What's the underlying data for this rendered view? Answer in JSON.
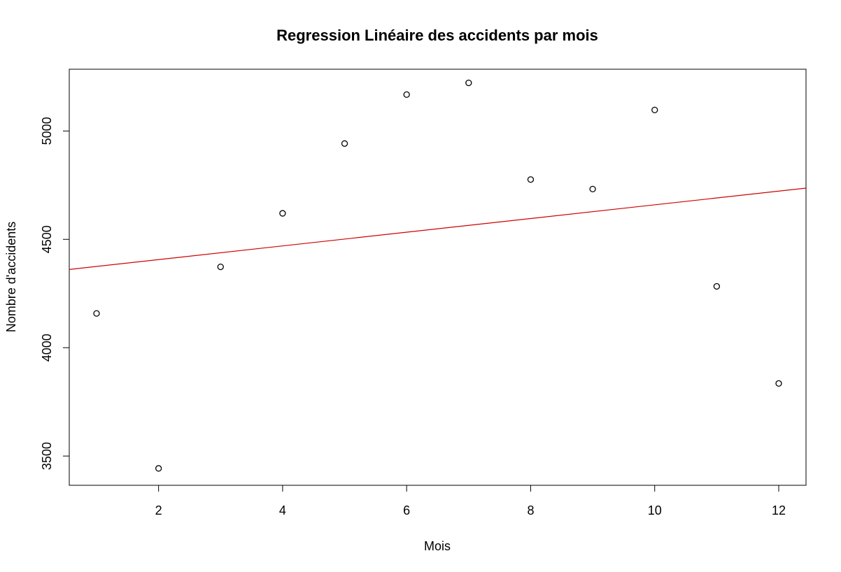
{
  "chart_data": {
    "type": "scatter",
    "title": "Regression Linéaire des accidents par mois",
    "xlabel": "Mois",
    "ylabel": "Nombre d'accidents",
    "xlim": [
      0.56,
      12.44
    ],
    "ylim": [
      3365,
      5285
    ],
    "x_ticks": [
      2,
      4,
      6,
      8,
      10,
      12
    ],
    "y_ticks": [
      3500,
      4000,
      4500,
      5000
    ],
    "grid": false,
    "points": [
      {
        "x": 1,
        "y": 4158
      },
      {
        "x": 2,
        "y": 3443
      },
      {
        "x": 3,
        "y": 4373
      },
      {
        "x": 4,
        "y": 4620
      },
      {
        "x": 5,
        "y": 4942
      },
      {
        "x": 6,
        "y": 5168
      },
      {
        "x": 7,
        "y": 5222
      },
      {
        "x": 8,
        "y": 4776
      },
      {
        "x": 9,
        "y": 4732
      },
      {
        "x": 10,
        "y": 5097
      },
      {
        "x": 11,
        "y": 4283
      },
      {
        "x": 12,
        "y": 3835
      }
    ],
    "regression_line": {
      "intercept": 4343.3,
      "slope": 31.6
    },
    "colors": {
      "points": "#000000",
      "regression_line": "#cc0000",
      "frame": "#000000"
    }
  }
}
